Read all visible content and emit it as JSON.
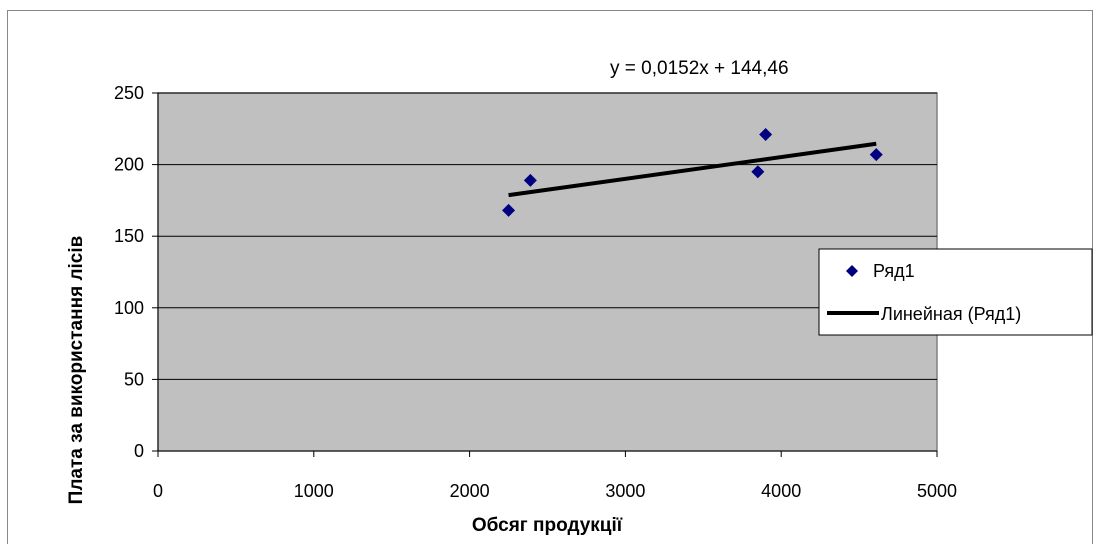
{
  "chart_data": {
    "type": "scatter",
    "xlabel": "Обсяг продукції",
    "ylabel": "Плата за використання лісів",
    "xlim": [
      0,
      5000
    ],
    "ylim": [
      0,
      250
    ],
    "x_ticks": [
      "0",
      "1000",
      "2000",
      "3000",
      "4000",
      "5000"
    ],
    "y_ticks": [
      "0",
      "50",
      "100",
      "150",
      "200",
      "250"
    ],
    "x_tick_values": [
      0,
      1000,
      2000,
      3000,
      4000,
      5000
    ],
    "y_tick_values": [
      0,
      50,
      100,
      150,
      200,
      250
    ],
    "grid": "horizontal",
    "plot_background": "#c0c0c0",
    "series": [
      {
        "name": "Ряд1",
        "marker": "diamond",
        "color": "#000080",
        "points": [
          {
            "x": 2250,
            "y": 168
          },
          {
            "x": 2390,
            "y": 189
          },
          {
            "x": 3850,
            "y": 195
          },
          {
            "x": 3900,
            "y": 221
          },
          {
            "x": 4610,
            "y": 207
          }
        ]
      }
    ],
    "trendline": {
      "name": "Линейная (Ряд1)",
      "color": "#000000",
      "slope": 0.0152,
      "intercept": 144.46,
      "x_range": [
        2250,
        4610
      ],
      "equation": "y = 0,0152x + 144,46"
    },
    "legend": {
      "position": "right",
      "entries": [
        "Ряд1",
        "Линейная (Ряд1)"
      ]
    }
  }
}
